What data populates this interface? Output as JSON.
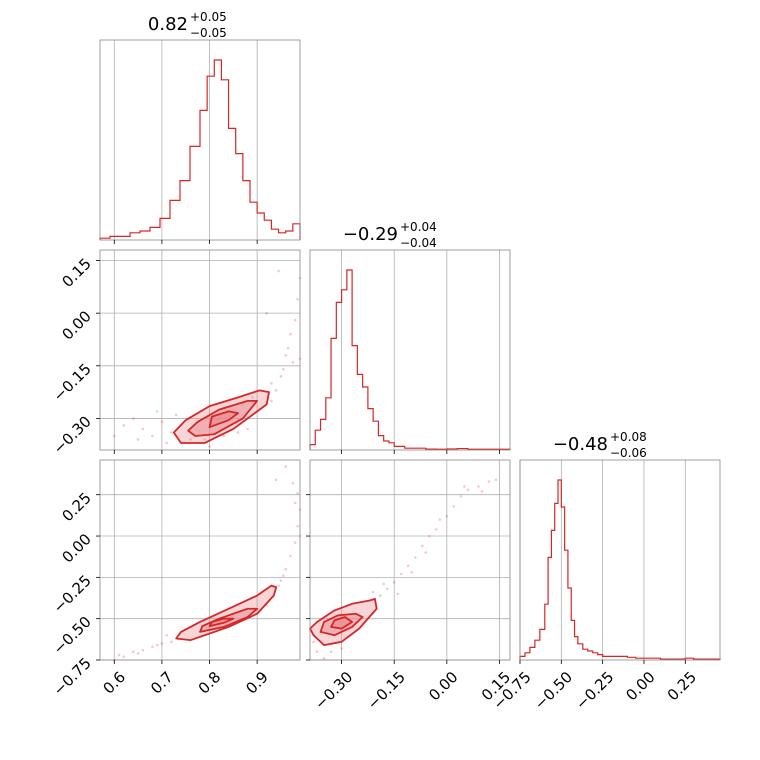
{
  "chart_data": {
    "type": "corner",
    "color": "#d62728",
    "fill_color": "#e8898e",
    "grid": true,
    "parameters": [
      {
        "title": {
          "value": "0.82",
          "plus": "+0.05",
          "minus": "−0.05"
        },
        "range": [
          0.57,
          0.99
        ],
        "ticks": [
          0.6,
          0.7,
          0.8,
          0.9
        ],
        "tick_labels": [
          "0.6",
          "0.7",
          "0.8",
          "0.9"
        ]
      },
      {
        "title": {
          "value": "−0.29",
          "plus": "+0.04",
          "minus": "−0.04"
        },
        "range": [
          -0.39,
          0.18
        ],
        "ticks": [
          -0.3,
          -0.15,
          0.0,
          0.15
        ],
        "tick_labels": [
          "−0.30",
          "−0.15",
          "0.00",
          "0.15"
        ]
      },
      {
        "title": {
          "value": "−0.48",
          "plus": "+0.08",
          "minus": "−0.06"
        },
        "range": [
          -0.75,
          0.46
        ],
        "ticks": [
          -0.75,
          -0.5,
          -0.25,
          0.0,
          0.25
        ],
        "tick_labels": [
          "−0.75",
          "−0.50",
          "−0.25",
          "0.00",
          "0.25"
        ]
      }
    ],
    "marginals": [
      {
        "param": 0,
        "edges": [
          0.57,
          0.591,
          0.612,
          0.633,
          0.654,
          0.675,
          0.696,
          0.717,
          0.738,
          0.759,
          0.78,
          0.795,
          0.81,
          0.825,
          0.84,
          0.855,
          0.87,
          0.885,
          0.9,
          0.915,
          0.93,
          0.945,
          0.96,
          0.975,
          0.99
        ],
        "counts": [
          0.01,
          0.02,
          0.02,
          0.04,
          0.05,
          0.07,
          0.12,
          0.22,
          0.33,
          0.52,
          0.72,
          0.91,
          1.0,
          0.89,
          0.62,
          0.48,
          0.33,
          0.21,
          0.15,
          0.11,
          0.06,
          0.04,
          0.05,
          0.09
        ]
      },
      {
        "param": 1,
        "edges": [
          -0.39,
          -0.375,
          -0.36,
          -0.345,
          -0.33,
          -0.315,
          -0.3,
          -0.285,
          -0.27,
          -0.255,
          -0.24,
          -0.225,
          -0.21,
          -0.195,
          -0.18,
          -0.165,
          -0.15,
          -0.12,
          -0.09,
          -0.06,
          -0.03,
          0.0,
          0.03,
          0.06,
          0.09,
          0.12,
          0.15,
          0.18
        ],
        "counts": [
          0.03,
          0.11,
          0.17,
          0.29,
          0.62,
          0.82,
          0.89,
          1.0,
          0.58,
          0.42,
          0.35,
          0.23,
          0.16,
          0.08,
          0.05,
          0.04,
          0.02,
          0.01,
          0.01,
          0.005,
          0.004,
          0.006,
          0.008,
          0.004,
          0.004,
          0.004,
          0.004
        ]
      },
      {
        "param": 2,
        "edges": [
          -0.75,
          -0.72,
          -0.69,
          -0.66,
          -0.63,
          -0.6,
          -0.58,
          -0.56,
          -0.54,
          -0.52,
          -0.5,
          -0.48,
          -0.46,
          -0.44,
          -0.42,
          -0.4,
          -0.37,
          -0.34,
          -0.31,
          -0.28,
          -0.25,
          -0.2,
          -0.15,
          -0.1,
          -0.05,
          0.0,
          0.05,
          0.1,
          0.15,
          0.2,
          0.25,
          0.3,
          0.35,
          0.4,
          0.46
        ],
        "counts": [
          0.02,
          0.04,
          0.07,
          0.11,
          0.17,
          0.31,
          0.57,
          0.72,
          0.87,
          1.0,
          0.85,
          0.61,
          0.4,
          0.22,
          0.13,
          0.09,
          0.06,
          0.05,
          0.04,
          0.03,
          0.02,
          0.02,
          0.02,
          0.015,
          0.01,
          0.01,
          0.01,
          0.005,
          0.005,
          0.005,
          0.01,
          0.005,
          0.005,
          0.005
        ]
      }
    ],
    "joint": [
      {
        "x": 0,
        "y": 1,
        "contours": [
          [
            [
              0.74,
              -0.37
            ],
            [
              0.79,
              -0.37
            ],
            [
              0.85,
              -0.33
            ],
            [
              0.92,
              -0.26
            ],
            [
              0.925,
              -0.225
            ],
            [
              0.905,
              -0.22
            ],
            [
              0.86,
              -0.24
            ],
            [
              0.8,
              -0.265
            ],
            [
              0.75,
              -0.305
            ],
            [
              0.725,
              -0.34
            ]
          ],
          [
            [
              0.77,
              -0.35
            ],
            [
              0.81,
              -0.345
            ],
            [
              0.87,
              -0.3
            ],
            [
              0.9,
              -0.25
            ],
            [
              0.88,
              -0.25
            ],
            [
              0.82,
              -0.275
            ],
            [
              0.775,
              -0.31
            ],
            [
              0.755,
              -0.335
            ]
          ],
          [
            [
              0.8,
              -0.325
            ],
            [
              0.84,
              -0.305
            ],
            [
              0.86,
              -0.285
            ],
            [
              0.84,
              -0.28
            ],
            [
              0.805,
              -0.295
            ]
          ]
        ],
        "points": [
          [
            0.72,
            -0.34
          ],
          [
            0.7,
            -0.31
          ],
          [
            0.68,
            -0.35
          ],
          [
            0.66,
            -0.33
          ],
          [
            0.64,
            -0.3
          ],
          [
            0.62,
            -0.32
          ],
          [
            0.76,
            -0.36
          ],
          [
            0.79,
            -0.36
          ],
          [
            0.83,
            -0.35
          ],
          [
            0.86,
            -0.34
          ],
          [
            0.94,
            -0.22
          ],
          [
            0.95,
            -0.18
          ],
          [
            0.96,
            -0.12
          ],
          [
            0.97,
            -0.06
          ],
          [
            0.98,
            -0.02
          ],
          [
            0.985,
            0.04
          ],
          [
            0.99,
            0.1
          ],
          [
            0.965,
            -0.1
          ],
          [
            0.955,
            -0.16
          ],
          [
            0.93,
            -0.2
          ],
          [
            0.89,
            -0.24
          ],
          [
            0.87,
            -0.26
          ],
          [
            0.69,
            -0.28
          ],
          [
            0.73,
            -0.29
          ],
          [
            0.71,
            -0.37
          ],
          [
            0.8,
            -0.38
          ],
          [
            0.88,
            -0.33
          ],
          [
            0.6,
            -0.35
          ],
          [
            0.65,
            -0.36
          ],
          [
            0.93,
            -0.25
          ],
          [
            0.975,
            -0.14
          ],
          [
            0.945,
            0.12
          ],
          [
            0.92,
            0.0
          ],
          [
            0.99,
            -0.13
          ]
        ]
      },
      {
        "x": 0,
        "y": 2,
        "contours": [
          [
            [
              0.73,
              -0.62
            ],
            [
              0.76,
              -0.63
            ],
            [
              0.84,
              -0.55
            ],
            [
              0.9,
              -0.47
            ],
            [
              0.935,
              -0.36
            ],
            [
              0.94,
              -0.31
            ],
            [
              0.93,
              -0.3
            ],
            [
              0.9,
              -0.36
            ],
            [
              0.84,
              -0.44
            ],
            [
              0.78,
              -0.52
            ],
            [
              0.74,
              -0.58
            ]
          ],
          [
            [
              0.78,
              -0.58
            ],
            [
              0.83,
              -0.55
            ],
            [
              0.88,
              -0.49
            ],
            [
              0.9,
              -0.44
            ],
            [
              0.88,
              -0.44
            ],
            [
              0.82,
              -0.5
            ],
            [
              0.785,
              -0.545
            ]
          ],
          [
            [
              0.8,
              -0.545
            ],
            [
              0.83,
              -0.525
            ],
            [
              0.85,
              -0.5
            ],
            [
              0.83,
              -0.5
            ],
            [
              0.805,
              -0.52
            ]
          ]
        ],
        "points": [
          [
            0.6,
            -0.75
          ],
          [
            0.62,
            -0.73
          ],
          [
            0.64,
            -0.7
          ],
          [
            0.66,
            -0.69
          ],
          [
            0.68,
            -0.67
          ],
          [
            0.7,
            -0.65
          ],
          [
            0.72,
            -0.64
          ],
          [
            0.61,
            -0.72
          ],
          [
            0.65,
            -0.71
          ],
          [
            0.69,
            -0.66
          ],
          [
            0.95,
            -0.27
          ],
          [
            0.96,
            -0.2
          ],
          [
            0.97,
            -0.12
          ],
          [
            0.98,
            -0.04
          ],
          [
            0.985,
            0.06
          ],
          [
            0.99,
            0.16
          ],
          [
            0.985,
            0.26
          ],
          [
            0.975,
            0.32
          ],
          [
            0.96,
            0.42
          ],
          [
            0.955,
            -0.24
          ],
          [
            0.945,
            -0.3
          ],
          [
            0.87,
            -0.5
          ],
          [
            0.92,
            -0.42
          ],
          [
            0.71,
            -0.6
          ],
          [
            0.94,
            0.34
          ],
          [
            0.98,
            0.2
          ],
          [
            0.99,
            0.0
          ]
        ]
      },
      {
        "x": 1,
        "y": 2,
        "contours": [
          [
            [
              -0.38,
              -0.6
            ],
            [
              -0.35,
              -0.66
            ],
            [
              -0.3,
              -0.64
            ],
            [
              -0.25,
              -0.56
            ],
            [
              -0.2,
              -0.44
            ],
            [
              -0.205,
              -0.38
            ],
            [
              -0.22,
              -0.39
            ],
            [
              -0.27,
              -0.41
            ],
            [
              -0.32,
              -0.45
            ],
            [
              -0.37,
              -0.52
            ],
            [
              -0.39,
              -0.56
            ]
          ],
          [
            [
              -0.36,
              -0.58
            ],
            [
              -0.32,
              -0.6
            ],
            [
              -0.27,
              -0.55
            ],
            [
              -0.24,
              -0.49
            ],
            [
              -0.26,
              -0.47
            ],
            [
              -0.31,
              -0.48
            ],
            [
              -0.35,
              -0.52
            ]
          ],
          [
            [
              -0.33,
              -0.55
            ],
            [
              -0.3,
              -0.56
            ],
            [
              -0.27,
              -0.52
            ],
            [
              -0.29,
              -0.49
            ],
            [
              -0.32,
              -0.51
            ]
          ]
        ],
        "points": [
          [
            -0.37,
            -0.7
          ],
          [
            -0.35,
            -0.74
          ],
          [
            -0.33,
            -0.7
          ],
          [
            -0.3,
            -0.68
          ],
          [
            -0.38,
            -0.64
          ],
          [
            -0.19,
            -0.36
          ],
          [
            -0.17,
            -0.32
          ],
          [
            -0.15,
            -0.28
          ],
          [
            -0.13,
            -0.23
          ],
          [
            -0.11,
            -0.18
          ],
          [
            -0.09,
            -0.13
          ],
          [
            -0.07,
            -0.06
          ],
          [
            -0.05,
            0.0
          ],
          [
            -0.03,
            0.04
          ],
          [
            0.0,
            0.12
          ],
          [
            0.02,
            0.18
          ],
          [
            0.04,
            0.24
          ],
          [
            0.06,
            0.28
          ],
          [
            0.09,
            0.3
          ],
          [
            0.12,
            0.33
          ],
          [
            -0.21,
            -0.34
          ],
          [
            -0.18,
            -0.29
          ],
          [
            -0.14,
            -0.35
          ],
          [
            -0.1,
            -0.22
          ],
          [
            -0.06,
            -0.1
          ],
          [
            0.05,
            0.3
          ],
          [
            0.1,
            0.27
          ],
          [
            -0.02,
            0.1
          ],
          [
            0.14,
            0.34
          ]
        ]
      }
    ]
  }
}
